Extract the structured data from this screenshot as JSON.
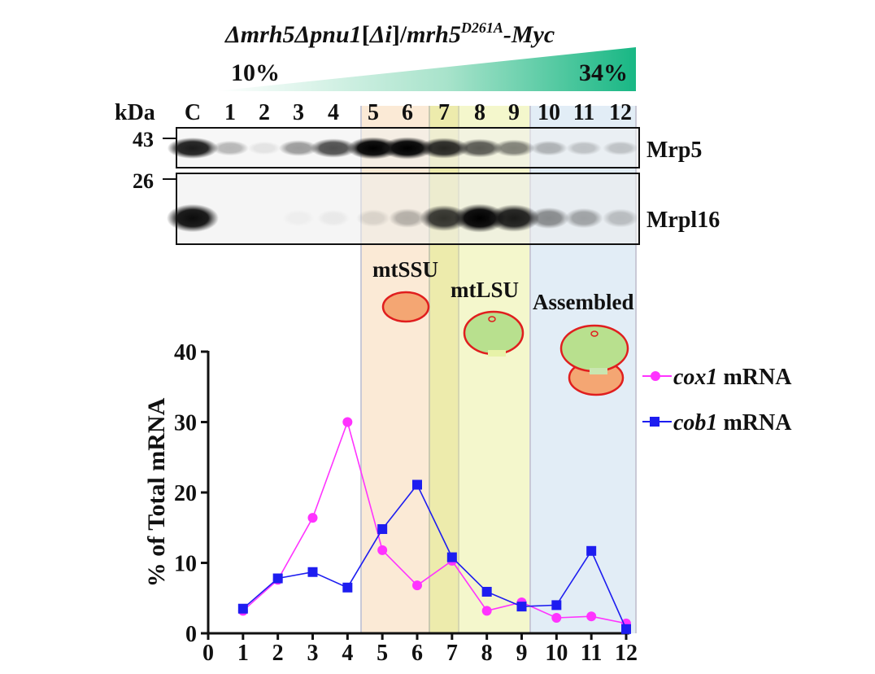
{
  "header": {
    "genotype_prefix": "Δmrh5Δpnu1",
    "genotype_bracket_open": "[",
    "genotype_bracket_inner": "Δi",
    "genotype_bracket_close": "]/",
    "genotype_allele": "mrh5",
    "genotype_superscript": "D261A",
    "genotype_suffix": "-Myc",
    "gradient_low": "10%",
    "gradient_high": "34%"
  },
  "blot": {
    "kda_label": "kDa",
    "lane_labels": [
      "C",
      "1",
      "2",
      "3",
      "4",
      "5",
      "6",
      "7",
      "8",
      "9",
      "10",
      "11",
      "12"
    ],
    "marker_43": "43",
    "marker_26": "26",
    "panels": [
      {
        "name": "Mrp5",
        "band_intensity": [
          0.85,
          0.25,
          0.08,
          0.35,
          0.65,
          0.95,
          0.95,
          0.8,
          0.6,
          0.45,
          0.25,
          0.18,
          0.18
        ]
      },
      {
        "name": "Mrpl16",
        "band_intensity": [
          0.9,
          0.0,
          0.0,
          0.03,
          0.05,
          0.1,
          0.25,
          0.75,
          0.95,
          0.85,
          0.4,
          0.3,
          0.2
        ]
      }
    ]
  },
  "regions": [
    {
      "label": "mtSSU",
      "color": "#f5c992",
      "text_color": "#4a3d2a"
    },
    {
      "label": "mtLSU",
      "color": "#e4ec86",
      "text_color": "#4a4a2a"
    },
    {
      "label": "Assembled",
      "color": "#b9d3ea",
      "text_color": "#3c4656"
    }
  ],
  "chart_data": {
    "type": "line",
    "xlabel": "",
    "ylabel": "% of Total mRNA",
    "x_ticks": [
      0,
      1,
      2,
      3,
      4,
      5,
      6,
      7,
      8,
      9,
      10,
      11,
      12
    ],
    "y_ticks": [
      0,
      10,
      20,
      30,
      40
    ],
    "xlim": [
      0,
      12
    ],
    "ylim": [
      0,
      40
    ],
    "legend_position": "right",
    "series": [
      {
        "name_italic": "cox1",
        "name_rest": " mRNA",
        "color": "#ff33ff",
        "marker": "circle",
        "x": [
          1,
          2,
          3,
          4,
          5,
          6,
          7,
          8,
          9,
          10,
          11,
          12
        ],
        "values": [
          3.2,
          7.6,
          16.4,
          30.0,
          11.8,
          6.8,
          10.3,
          3.2,
          4.4,
          2.2,
          2.4,
          1.4
        ]
      },
      {
        "name_italic": "cob1",
        "name_rest": " mRNA",
        "color": "#1d1df0",
        "marker": "square",
        "x": [
          1,
          2,
          3,
          4,
          5,
          6,
          7,
          8,
          9,
          10,
          11,
          12
        ],
        "values": [
          3.5,
          7.8,
          8.7,
          6.5,
          14.8,
          21.1,
          10.8,
          5.9,
          3.8,
          4.0,
          11.7,
          0.6
        ]
      }
    ]
  }
}
